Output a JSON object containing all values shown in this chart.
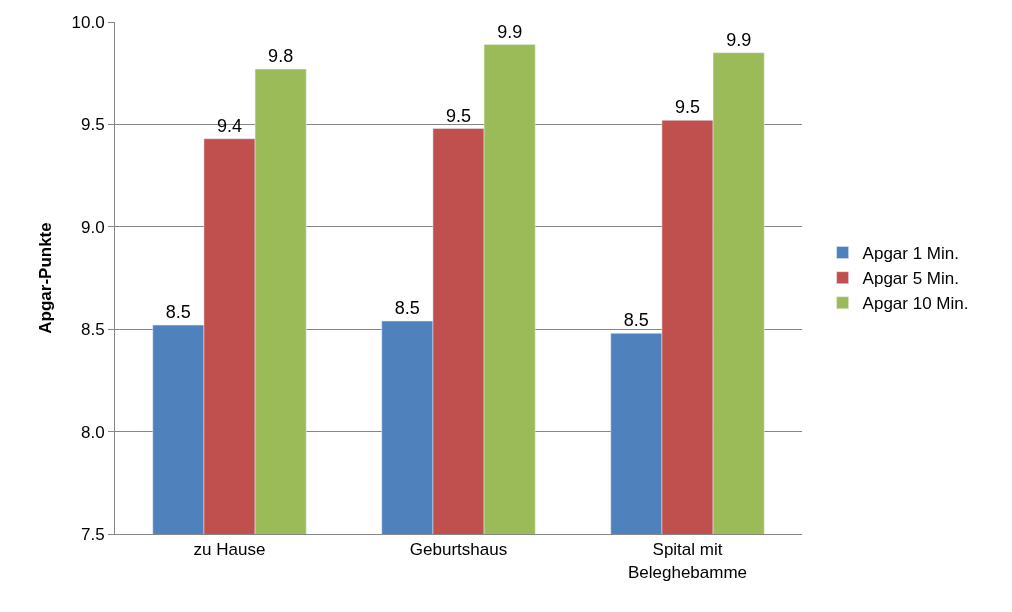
{
  "chart_data": {
    "type": "bar",
    "ylabel": "Apgar-Punkte",
    "categories": [
      "zu Hause",
      "Geburtshaus",
      "Spital mit Beleghebamme"
    ],
    "series": [
      {
        "name": "Apgar 1 Min.",
        "color": "#4f81bd",
        "values": [
          8.52,
          8.54,
          8.48
        ],
        "value_labels": [
          "8.5",
          "8.5",
          "8.5"
        ]
      },
      {
        "name": "Apgar 5 Min.",
        "color": "#c0504d",
        "values": [
          9.43,
          9.48,
          9.52
        ],
        "value_labels": [
          "9.4",
          "9.5",
          "9.5"
        ]
      },
      {
        "name": "Apgar 10 Min.",
        "color": "#9bbb59",
        "values": [
          9.77,
          9.89,
          9.85
        ],
        "value_labels": [
          "9.8",
          "9.9",
          "9.9"
        ]
      }
    ],
    "ylim": [
      7.5,
      10.0
    ],
    "yticks": [
      {
        "value": 7.5,
        "label": "7.5"
      },
      {
        "value": 8.0,
        "label": "8.0"
      },
      {
        "value": 8.5,
        "label": "8.5"
      },
      {
        "value": 9.0,
        "label": "9.0"
      },
      {
        "value": 9.5,
        "label": "9.5"
      },
      {
        "value": 10.0,
        "label": "10.0"
      }
    ],
    "grid": "y",
    "legend": "right"
  }
}
